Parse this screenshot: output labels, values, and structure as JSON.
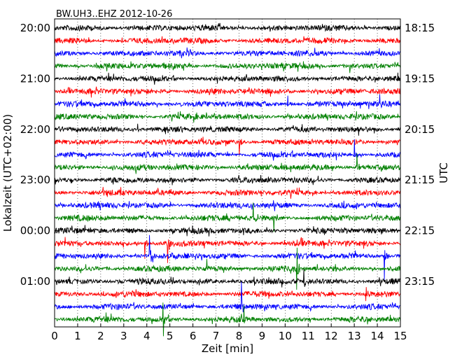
{
  "chart_data": {
    "type": "line",
    "title": "BW.UH3..EHZ 2012-10-26",
    "xlabel": "Zeit  [min]",
    "ylabel": "Lokalzeit (UTC+02:00)",
    "ylabel_right": "UTC",
    "xlim": [
      0,
      15
    ],
    "x_ticks": [
      "0",
      "1",
      "2",
      "3",
      "4",
      "5",
      "6",
      "7",
      "8",
      "9",
      "10",
      "11",
      "12",
      "13",
      "14",
      "15"
    ],
    "left_ticks": [
      "20:00",
      "21:00",
      "22:00",
      "23:00",
      "00:00",
      "01:00"
    ],
    "right_ticks": [
      "18:15",
      "19:15",
      "20:15",
      "21:15",
      "22:15",
      "23:15"
    ],
    "trace_minutes": 15,
    "trace_count": 24,
    "colors": [
      "#000000",
      "#ff0000",
      "#0000ff",
      "#008000"
    ],
    "events": [
      {
        "trace": 9,
        "x": 8.0,
        "amp": 18
      },
      {
        "trace": 10,
        "x": 13.0,
        "amp": 22
      },
      {
        "trace": 11,
        "x": 13.1,
        "amp": 20
      },
      {
        "trace": 6,
        "x": 10.1,
        "amp": 12
      },
      {
        "trace": 6,
        "x": 14.1,
        "amp": 14
      },
      {
        "trace": 8,
        "x": 3.6,
        "amp": 8
      },
      {
        "trace": 15,
        "x": 8.6,
        "amp": 22
      },
      {
        "trace": 15,
        "x": 9.5,
        "amp": 20
      },
      {
        "trace": 17,
        "x": 3.9,
        "amp": 22
      },
      {
        "trace": 17,
        "x": 4.9,
        "amp": 28
      },
      {
        "trace": 18,
        "x": 4.1,
        "amp": 30
      },
      {
        "trace": 18,
        "x": 14.3,
        "amp": 34
      },
      {
        "trace": 19,
        "x": 10.5,
        "amp": 30
      },
      {
        "trace": 19,
        "x": 6.6,
        "amp": 14
      },
      {
        "trace": 20,
        "x": 10.8,
        "amp": 18
      },
      {
        "trace": 22,
        "x": 8.1,
        "amp": 36
      },
      {
        "trace": 23,
        "x": 4.7,
        "amp": 24
      },
      {
        "trace": 23,
        "x": 8.2,
        "amp": 20
      },
      {
        "trace": 21,
        "x": 13.5,
        "amp": 10
      },
      {
        "trace": 3,
        "x": 12.8,
        "amp": 10
      }
    ]
  }
}
